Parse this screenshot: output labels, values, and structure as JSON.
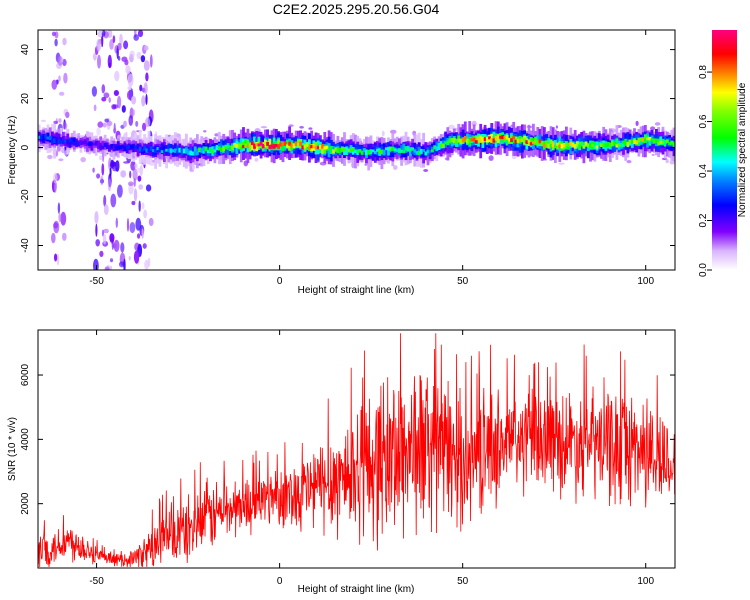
{
  "title": "C2E2.2025.295.20.56.G04",
  "chart_data": [
    {
      "type": "heatmap",
      "title": "C2E2.2025.295.20.56.G04",
      "xlabel": "Height of straight line (km)",
      "ylabel": "Frequency (Hz)",
      "xlim": [
        -66,
        108
      ],
      "ylim": [
        -50,
        48
      ],
      "xticks": [
        -50,
        0,
        50,
        100
      ],
      "yticks": [
        -40,
        -20,
        0,
        20,
        40
      ],
      "colorbar": {
        "label": "Normalized spectral amplitude",
        "range": [
          0,
          0.97
        ],
        "ticks": [
          "0.0",
          "0.2",
          "0.4",
          "0.6",
          "0.8"
        ],
        "colormap": [
          "#ffffff",
          "#cc99ff",
          "#8000ff",
          "#0000ff",
          "#00ffff",
          "#00ff00",
          "#ffff00",
          "#ff8000",
          "#ff0000",
          "#ff0080"
        ]
      },
      "ridge": {
        "x": [
          -66,
          -60,
          -55,
          -50,
          -45,
          -40,
          -35,
          -30,
          -25,
          -20,
          -15,
          -10,
          -5,
          0,
          5,
          10,
          15,
          20,
          25,
          30,
          35,
          40,
          43,
          45,
          50,
          55,
          60,
          65,
          70,
          75,
          80,
          85,
          90,
          95,
          100,
          105,
          108
        ],
        "freq": [
          4,
          3,
          2,
          1,
          0,
          0,
          -1,
          -1,
          -2,
          -1,
          0,
          1,
          1,
          1,
          1,
          0,
          -1,
          -1,
          -2,
          -1,
          -1,
          -2,
          0,
          2,
          3,
          3,
          4,
          3,
          2,
          1,
          1,
          1,
          1,
          2,
          3,
          2,
          1
        ],
        "peak_amplitude": [
          0.35,
          0.3,
          0.25,
          0.22,
          0.25,
          0.3,
          0.35,
          0.4,
          0.45,
          0.55,
          0.6,
          0.85,
          0.9,
          0.85,
          0.8,
          0.9,
          0.6,
          0.55,
          0.5,
          0.55,
          0.5,
          0.45,
          0.5,
          0.6,
          0.75,
          0.85,
          0.9,
          0.85,
          0.8,
          0.75,
          0.7,
          0.65,
          0.6,
          0.65,
          0.7,
          0.6,
          0.55
        ]
      },
      "broadband_noise_x_ranges": [
        [
          -62,
          -58
        ],
        [
          -51,
          -35
        ]
      ]
    },
    {
      "type": "line",
      "title": "",
      "xlabel": "Height of straight line (km)",
      "ylabel": "SNR (10 * v/v)",
      "xlim": [
        -66,
        108
      ],
      "ylim": [
        0,
        7400
      ],
      "xticks": [
        -50,
        0,
        50,
        100
      ],
      "yticks": [
        2000,
        4000,
        6000
      ],
      "color": "#ff0000",
      "series": [
        {
          "name": "SNR",
          "x": [
            -66,
            -62,
            -58,
            -55,
            -52,
            -49,
            -46,
            -43,
            -40,
            -37,
            -34,
            -31,
            -28,
            -25,
            -22,
            -19,
            -16,
            -13,
            -10,
            -7,
            -4,
            -1,
            2,
            5,
            8,
            11,
            14,
            17,
            20,
            23,
            26,
            29,
            32,
            35,
            38,
            41,
            44,
            47,
            50,
            53,
            56,
            59,
            62,
            65,
            68,
            71,
            74,
            77,
            80,
            83,
            86,
            89,
            92,
            95,
            98,
            101,
            104,
            108
          ],
          "mean": [
            450,
            650,
            850,
            750,
            550,
            330,
            250,
            250,
            300,
            450,
            700,
            900,
            1050,
            1200,
            1400,
            1650,
            1750,
            1850,
            1950,
            2050,
            2150,
            2300,
            2250,
            2350,
            2450,
            2550,
            2700,
            2850,
            3000,
            3150,
            3300,
            3450,
            3600,
            3700,
            3750,
            3700,
            3650,
            3500,
            3300,
            3400,
            3650,
            3800,
            3900,
            3950,
            3950,
            4000,
            4000,
            3950,
            3950,
            3900,
            3850,
            3800,
            3750,
            3800,
            3750,
            3600,
            3400,
            3200
          ],
          "spread": [
            550,
            600,
            650,
            550,
            450,
            250,
            180,
            200,
            300,
            550,
            800,
            1000,
            1050,
            1050,
            1100,
            1150,
            1050,
            950,
            900,
            900,
            900,
            950,
            1000,
            1150,
            1350,
            1500,
            1700,
            1900,
            2100,
            2300,
            2500,
            2700,
            2750,
            2750,
            2700,
            2600,
            2500,
            2300,
            2000,
            1900,
            1900,
            1800,
            1700,
            1700,
            1650,
            1600,
            1600,
            1650,
            1700,
            1750,
            1800,
            1850,
            1900,
            1900,
            1850,
            1750,
            1600,
            1300
          ],
          "max_value": 7300
        }
      ]
    }
  ]
}
